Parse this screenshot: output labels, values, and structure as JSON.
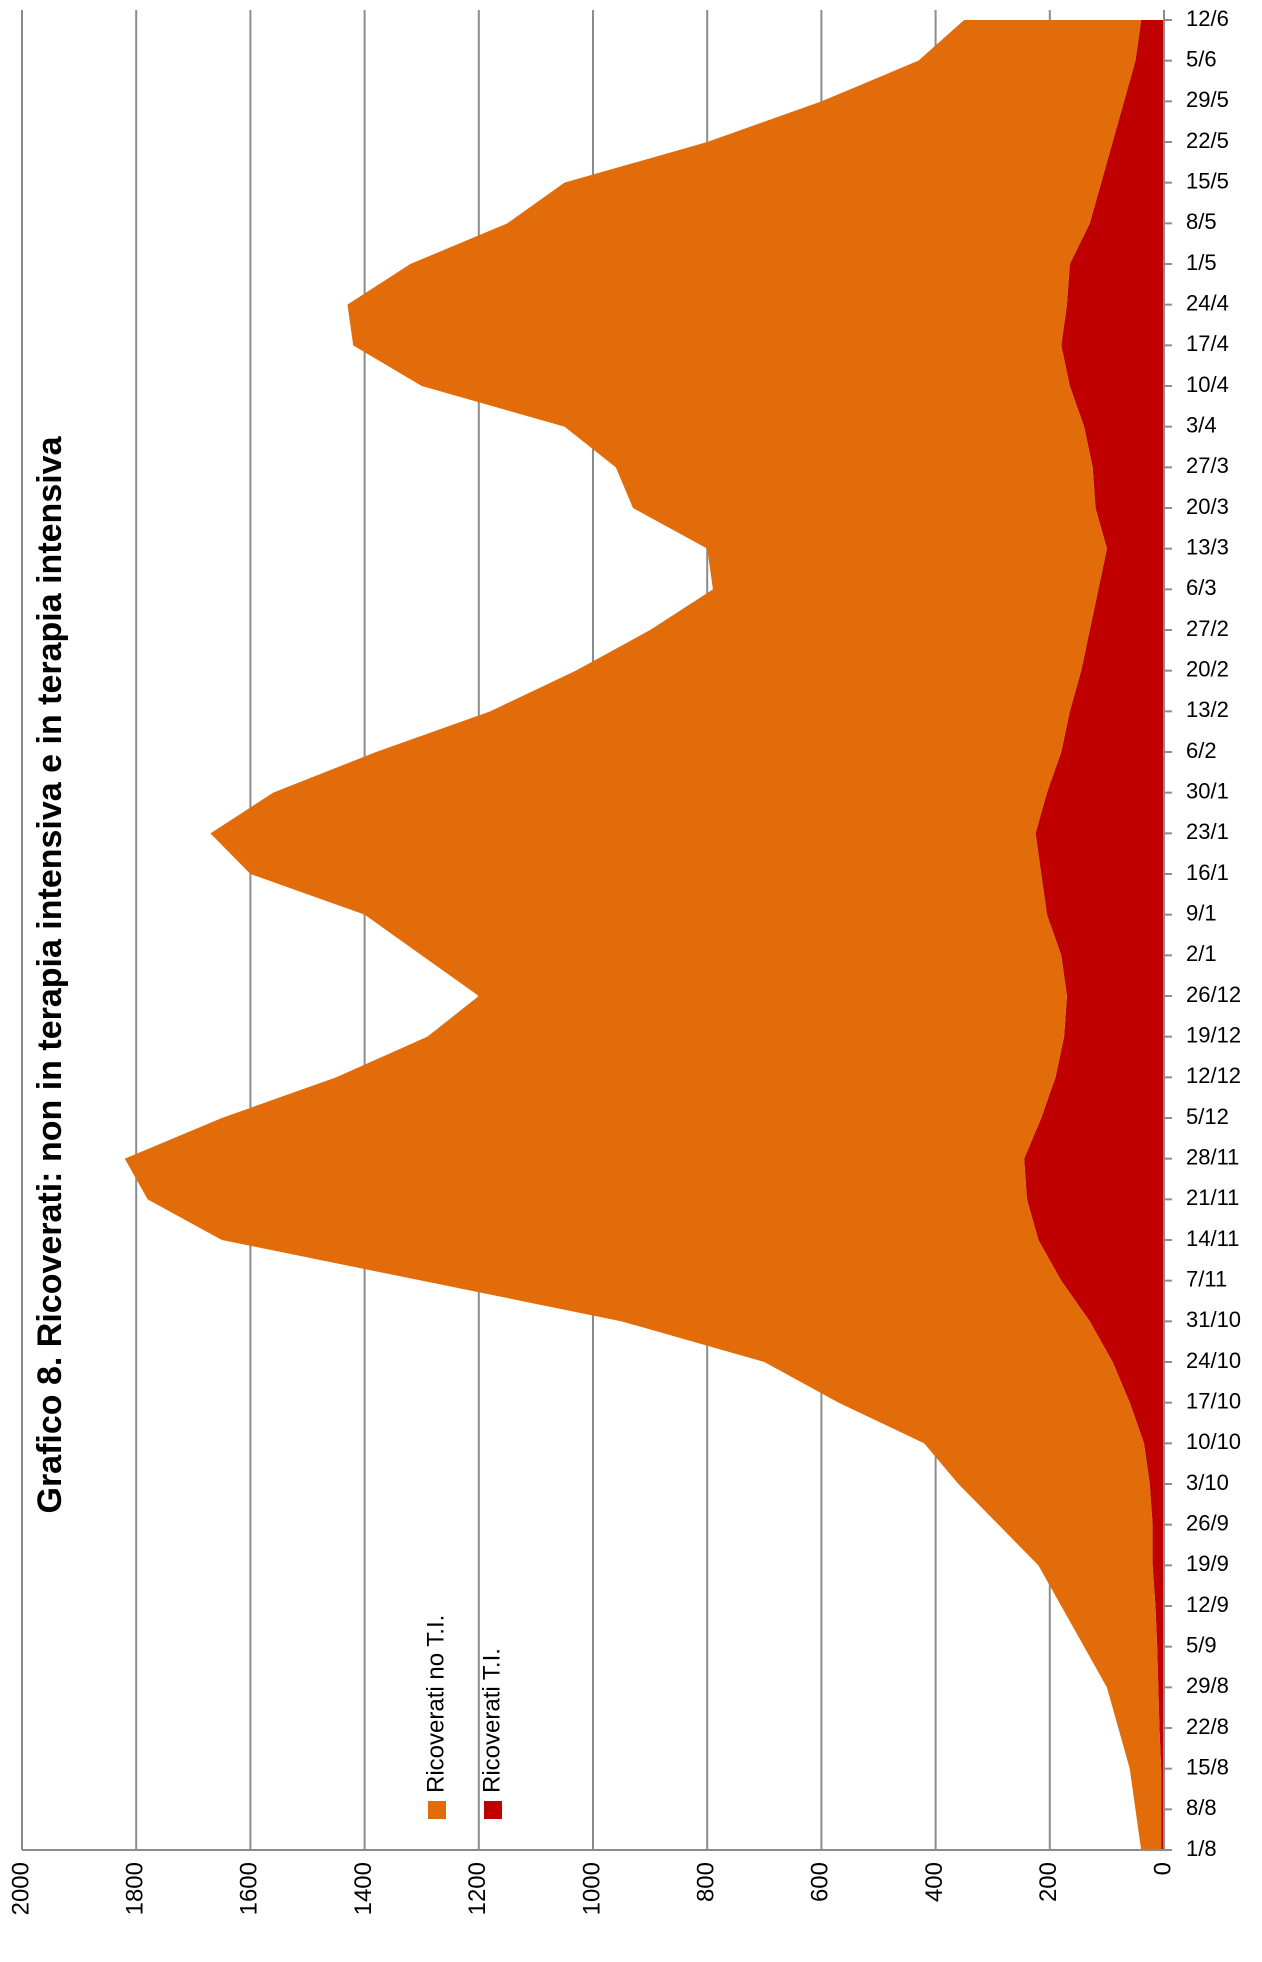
{
  "chart_data": {
    "type": "stacked_area",
    "title": "Grafico 8. Ricoverati: non in terapia intensiva e in terapia intensiva",
    "categories": [
      "1/8",
      "8/8",
      "15/8",
      "22/8",
      "29/8",
      "5/9",
      "12/9",
      "19/9",
      "26/9",
      "3/10",
      "10/10",
      "17/10",
      "24/10",
      "31/10",
      "7/11",
      "14/11",
      "21/11",
      "28/11",
      "5/12",
      "12/12",
      "19/12",
      "26/12",
      "2/1",
      "9/1",
      "16/1",
      "23/1",
      "30/1",
      "6/2",
      "13/2",
      "20/2",
      "27/2",
      "6/3",
      "13/3",
      "20/3",
      "27/3",
      "3/4",
      "10/4",
      "17/4",
      "24/4",
      "1/5",
      "8/5",
      "15/5",
      "22/5",
      "29/5",
      "5/6",
      "12/6"
    ],
    "series": [
      {
        "name": "Ricoverati no T.I.",
        "color": "#e36c0a",
        "values": [
          35,
          45,
          55,
          72,
          90,
          128,
          165,
          200,
          270,
          335,
          385,
          510,
          610,
          820,
          1120,
          1430,
          1540,
          1575,
          1435,
          1260,
          1115,
          1030,
          1120,
          1195,
          1385,
          1445,
          1355,
          1200,
          1015,
          885,
          770,
          675,
          700,
          810,
          835,
          910,
          1135,
          1240,
          1260,
          1155,
          1020,
          940,
          710,
          530,
          380,
          310
        ]
      },
      {
        "name": "Ricoverati T.I.",
        "color": "#c00000",
        "values": [
          5,
          5,
          5,
          8,
          10,
          12,
          15,
          20,
          20,
          25,
          35,
          60,
          90,
          130,
          180,
          220,
          240,
          245,
          215,
          190,
          175,
          170,
          180,
          205,
          215,
          225,
          205,
          180,
          165,
          145,
          130,
          115,
          100,
          120,
          125,
          140,
          165,
          180,
          170,
          165,
          130,
          110,
          90,
          70,
          50,
          40
        ]
      }
    ],
    "ylim": [
      0,
      2000
    ],
    "yticks": [
      0,
      200,
      400,
      600,
      800,
      1000,
      1200,
      1400,
      1600,
      1800,
      2000
    ],
    "grid": true
  }
}
